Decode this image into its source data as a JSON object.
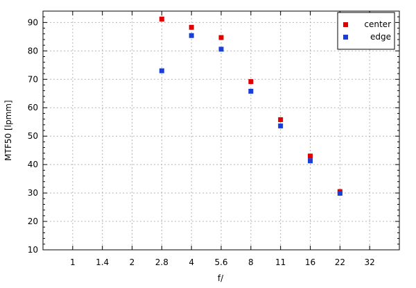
{
  "chart_data": {
    "type": "scatter",
    "title": "",
    "xlabel": "f/",
    "ylabel": "MTF50 [lpmm]",
    "x_categories": [
      "1",
      "1.4",
      "2",
      "2.8",
      "4",
      "5.6",
      "8",
      "11",
      "16",
      "22",
      "32"
    ],
    "ylim": [
      10,
      94
    ],
    "y_ticks": [
      10,
      20,
      30,
      40,
      50,
      60,
      70,
      80,
      90
    ],
    "grid": true,
    "legend_position": "top-right",
    "series": [
      {
        "name": "center",
        "color": "#e00000",
        "points": [
          {
            "x": "2.8",
            "y": 91.2
          },
          {
            "x": "4",
            "y": 88.3
          },
          {
            "x": "5.6",
            "y": 84.7
          },
          {
            "x": "8",
            "y": 69.2
          },
          {
            "x": "11",
            "y": 55.8
          },
          {
            "x": "16",
            "y": 43.0
          },
          {
            "x": "22",
            "y": 30.5
          }
        ]
      },
      {
        "name": "edge",
        "color": "#1a3fd6",
        "points": [
          {
            "x": "2.8",
            "y": 73.0
          },
          {
            "x": "4",
            "y": 85.4
          },
          {
            "x": "5.6",
            "y": 80.6
          },
          {
            "x": "8",
            "y": 65.8
          },
          {
            "x": "11",
            "y": 53.6
          },
          {
            "x": "16",
            "y": 41.3
          },
          {
            "x": "22",
            "y": 29.9
          }
        ]
      }
    ]
  }
}
